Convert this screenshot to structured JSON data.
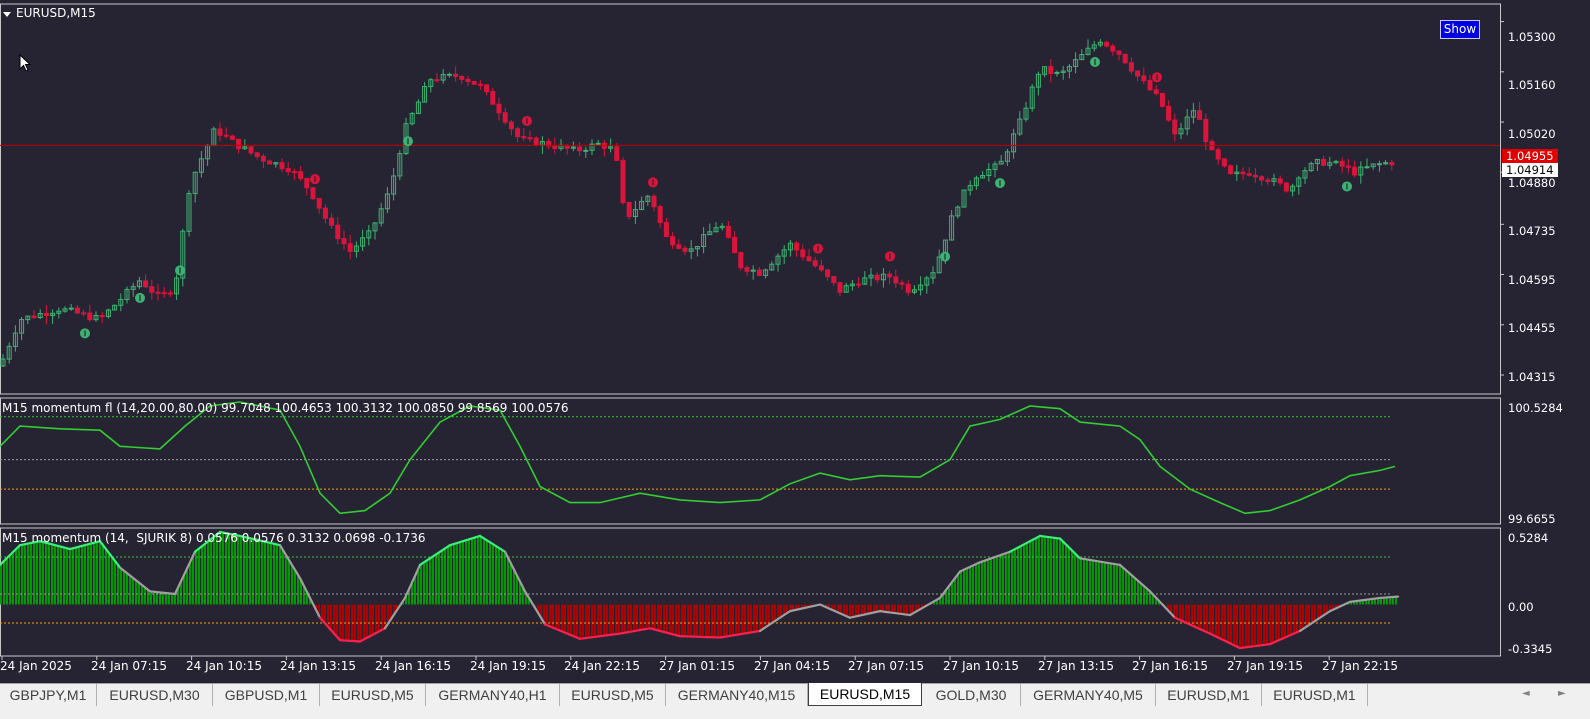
{
  "window": {
    "symbol_title": "EURUSD,M15",
    "show_button": "Show"
  },
  "price_axis": {
    "labels": [
      "1.05300",
      "1.05160",
      "1.05020",
      "1.04880",
      "1.04735",
      "1.04595",
      "1.04455",
      "1.04315"
    ],
    "bid": "1.04955",
    "last": "1.04914"
  },
  "indicator1": {
    "title": "M15 momentum fl (14,20.00,80.00) 99.7048 100.4653 100.3132 100.0850 99.8569 100.0576",
    "axis_max": "100.5284",
    "axis_min": "99.6655"
  },
  "indicator2": {
    "title": "M15 momentum (14,  SJURIK 8) 0.0576 0.0576 0.3132 0.0698 -0.1736",
    "axis_max": "0.5284",
    "axis_zero": "0.00",
    "axis_min": "-0.3345"
  },
  "time_axis": [
    "24 Jan 2025",
    "24 Jan 07:15",
    "24 Jan 10:15",
    "24 Jan 13:15",
    "24 Jan 16:15",
    "24 Jan 19:15",
    "24 Jan 22:15",
    "27 Jan 01:15",
    "27 Jan 04:15",
    "27 Jan 07:15",
    "27 Jan 10:15",
    "27 Jan 13:15",
    "27 Jan 16:15",
    "27 Jan 19:15",
    "27 Jan 22:15"
  ],
  "tabs": [
    {
      "label": "GBPJPY,M1",
      "active": false
    },
    {
      "label": "EURUSD,M30",
      "active": false
    },
    {
      "label": "GBPUSD,M1",
      "active": false
    },
    {
      "label": "EURUSD,M5",
      "active": false
    },
    {
      "label": "GERMANY40,H1",
      "active": false
    },
    {
      "label": "EURUSD,M5",
      "active": false
    },
    {
      "label": "GERMANY40,M15",
      "active": false
    },
    {
      "label": "EURUSD,M15",
      "active": true
    },
    {
      "label": "GOLD,M30",
      "active": false
    },
    {
      "label": "GERMANY40,M5",
      "active": false
    },
    {
      "label": "EURUSD,M1",
      "active": false
    },
    {
      "label": "EURUSD,M1",
      "active": false
    }
  ],
  "tab_scroll": {
    "left": "◄",
    "right": "►"
  },
  "colors": {
    "background": "#262433",
    "bull": "#3cb371",
    "bear": "#dc143c",
    "momentum_line": "#32cd32",
    "hist_pos": "#009900",
    "hist_neg": "#b00000",
    "bid_line": "#c00000"
  },
  "chart_data": {
    "type": "candlestick",
    "symbol": "EURUSD",
    "timeframe": "M15",
    "price_close_path": [
      [
        0,
        1.0434
      ],
      [
        20,
        1.0447
      ],
      [
        60,
        1.045
      ],
      [
        100,
        1.0447
      ],
      [
        140,
        1.0458
      ],
      [
        160,
        1.0453
      ],
      [
        175,
        1.0456
      ],
      [
        190,
        1.0485
      ],
      [
        215,
        1.05
      ],
      [
        235,
        1.0496
      ],
      [
        260,
        1.0492
      ],
      [
        290,
        1.0489
      ],
      [
        310,
        1.0483
      ],
      [
        330,
        1.0473
      ],
      [
        350,
        1.0466
      ],
      [
        370,
        1.0471
      ],
      [
        390,
        1.0483
      ],
      [
        405,
        1.05
      ],
      [
        430,
        1.0514
      ],
      [
        460,
        1.0515
      ],
      [
        480,
        1.0512
      ],
      [
        500,
        1.0505
      ],
      [
        520,
        1.0497
      ],
      [
        545,
        1.0496
      ],
      [
        575,
        1.0494
      ],
      [
        600,
        1.0496
      ],
      [
        615,
        1.0494
      ],
      [
        625,
        1.0475
      ],
      [
        650,
        1.0482
      ],
      [
        665,
        1.047
      ],
      [
        690,
        1.0466
      ],
      [
        720,
        1.0474
      ],
      [
        740,
        1.0462
      ],
      [
        760,
        1.046
      ],
      [
        790,
        1.0468
      ],
      [
        815,
        1.0462
      ],
      [
        840,
        1.0455
      ],
      [
        860,
        1.0458
      ],
      [
        890,
        1.0459
      ],
      [
        910,
        1.0455
      ],
      [
        935,
        1.0461
      ],
      [
        955,
        1.0478
      ],
      [
        975,
        1.0487
      ],
      [
        1000,
        1.049
      ],
      [
        1020,
        1.0502
      ],
      [
        1040,
        1.0517
      ],
      [
        1060,
        1.0515
      ],
      [
        1080,
        1.052
      ],
      [
        1100,
        1.0525
      ],
      [
        1120,
        1.0521
      ],
      [
        1140,
        1.0514
      ],
      [
        1160,
        1.0508
      ],
      [
        1175,
        1.0498
      ],
      [
        1195,
        1.0506
      ],
      [
        1210,
        1.0494
      ],
      [
        1230,
        1.0487
      ],
      [
        1250,
        1.0488
      ],
      [
        1270,
        1.0486
      ],
      [
        1290,
        1.0483
      ],
      [
        1300,
        1.0488
      ],
      [
        1320,
        1.0491
      ],
      [
        1340,
        1.049
      ],
      [
        1355,
        1.0488
      ],
      [
        1375,
        1.049
      ],
      [
        1395,
        1.0491
      ]
    ],
    "bid_price": 1.04955,
    "fractal_markers": [
      {
        "x": 85,
        "kind": "down"
      },
      {
        "x": 140,
        "kind": "down"
      },
      {
        "x": 180,
        "kind": "down"
      },
      {
        "x": 315,
        "kind": "up"
      },
      {
        "x": 408,
        "kind": "down"
      },
      {
        "x": 527,
        "kind": "up"
      },
      {
        "x": 653,
        "kind": "up"
      },
      {
        "x": 818,
        "kind": "up"
      },
      {
        "x": 890,
        "kind": "up"
      },
      {
        "x": 945,
        "kind": "down"
      },
      {
        "x": 1000,
        "kind": "down"
      },
      {
        "x": 1095,
        "kind": "down"
      },
      {
        "x": 1157,
        "kind": "up"
      },
      {
        "x": 1347,
        "kind": "down"
      }
    ],
    "momentum_fl": [
      [
        0,
        100.2
      ],
      [
        20,
        100.35
      ],
      [
        60,
        100.33
      ],
      [
        100,
        100.32
      ],
      [
        120,
        100.2
      ],
      [
        160,
        100.18
      ],
      [
        185,
        100.35
      ],
      [
        210,
        100.5
      ],
      [
        240,
        100.53
      ],
      [
        280,
        100.47
      ],
      [
        300,
        100.2
      ],
      [
        320,
        99.85
      ],
      [
        340,
        99.7
      ],
      [
        365,
        99.72
      ],
      [
        390,
        99.85
      ],
      [
        410,
        100.1
      ],
      [
        440,
        100.38
      ],
      [
        470,
        100.5
      ],
      [
        500,
        100.47
      ],
      [
        520,
        100.2
      ],
      [
        540,
        99.9
      ],
      [
        570,
        99.78
      ],
      [
        600,
        99.78
      ],
      [
        640,
        99.85
      ],
      [
        680,
        99.8
      ],
      [
        720,
        99.78
      ],
      [
        760,
        99.8
      ],
      [
        790,
        99.92
      ],
      [
        820,
        100.0
      ],
      [
        850,
        99.95
      ],
      [
        880,
        99.98
      ],
      [
        920,
        99.97
      ],
      [
        950,
        100.1
      ],
      [
        970,
        100.35
      ],
      [
        1000,
        100.4
      ],
      [
        1030,
        100.5
      ],
      [
        1060,
        100.48
      ],
      [
        1080,
        100.38
      ],
      [
        1120,
        100.35
      ],
      [
        1140,
        100.25
      ],
      [
        1160,
        100.05
      ],
      [
        1190,
        99.88
      ],
      [
        1220,
        99.78
      ],
      [
        1245,
        99.7
      ],
      [
        1270,
        99.72
      ],
      [
        1300,
        99.8
      ],
      [
        1330,
        99.9
      ],
      [
        1350,
        99.98
      ],
      [
        1380,
        100.02
      ],
      [
        1395,
        100.05
      ]
    ],
    "momentum_fl_levels": {
      "upper": 100.42,
      "middle": 100.1,
      "lower": 99.88
    },
    "momentum": [
      [
        0,
        0.3
      ],
      [
        20,
        0.45
      ],
      [
        40,
        0.48
      ],
      [
        70,
        0.42
      ],
      [
        100,
        0.48
      ],
      [
        120,
        0.28
      ],
      [
        150,
        0.1
      ],
      [
        175,
        0.08
      ],
      [
        195,
        0.4
      ],
      [
        220,
        0.55
      ],
      [
        240,
        0.52
      ],
      [
        280,
        0.45
      ],
      [
        300,
        0.2
      ],
      [
        320,
        -0.1
      ],
      [
        340,
        -0.27
      ],
      [
        360,
        -0.28
      ],
      [
        385,
        -0.18
      ],
      [
        405,
        0.05
      ],
      [
        420,
        0.3
      ],
      [
        450,
        0.45
      ],
      [
        480,
        0.52
      ],
      [
        505,
        0.4
      ],
      [
        525,
        0.1
      ],
      [
        545,
        -0.15
      ],
      [
        580,
        -0.26
      ],
      [
        620,
        -0.22
      ],
      [
        650,
        -0.18
      ],
      [
        680,
        -0.24
      ],
      [
        720,
        -0.25
      ],
      [
        760,
        -0.2
      ],
      [
        790,
        -0.05
      ],
      [
        820,
        0.0
      ],
      [
        850,
        -0.1
      ],
      [
        880,
        -0.05
      ],
      [
        910,
        -0.08
      ],
      [
        940,
        0.05
      ],
      [
        960,
        0.25
      ],
      [
        980,
        0.32
      ],
      [
        1010,
        0.4
      ],
      [
        1040,
        0.52
      ],
      [
        1060,
        0.5
      ],
      [
        1080,
        0.35
      ],
      [
        1120,
        0.3
      ],
      [
        1150,
        0.1
      ],
      [
        1175,
        -0.1
      ],
      [
        1210,
        -0.22
      ],
      [
        1240,
        -0.33
      ],
      [
        1270,
        -0.3
      ],
      [
        1300,
        -0.2
      ],
      [
        1330,
        -0.05
      ],
      [
        1350,
        0.02
      ],
      [
        1380,
        0.05
      ],
      [
        1398,
        0.06
      ]
    ],
    "momentum_levels": {
      "upper": 0.36,
      "middle": 0.08,
      "lower": -0.14
    }
  }
}
